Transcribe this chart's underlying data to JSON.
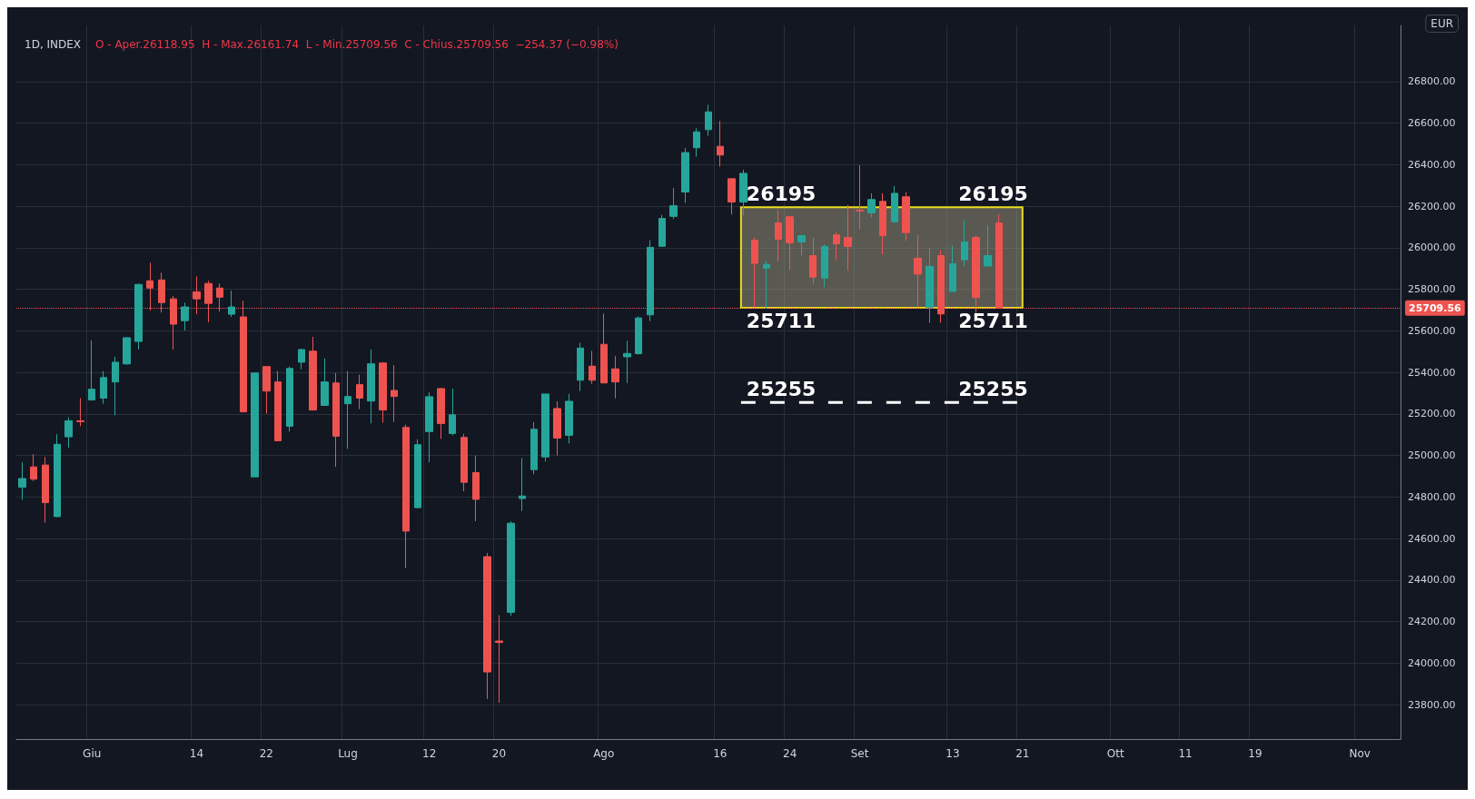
{
  "chart_data": {
    "type": "candlestick",
    "title": "1D, INDEX",
    "subtitle": "O - Aper.26118.95  H - Max.26161.74  L - Min.25709.56  C - Chius.25709.56  −254.37 (−0.98%)",
    "categories": [
      null,
      null,
      null,
      null,
      null,
      null,
      "Giu",
      null,
      null,
      null,
      null,
      null,
      null,
      null,
      null,
      "14",
      null,
      null,
      null,
      null,
      null,
      "22",
      null,
      null,
      null,
      null,
      null,
      null,
      "Lug",
      null,
      null,
      null,
      null,
      null,
      null,
      "12",
      null,
      null,
      null,
      null,
      null,
      "20",
      null,
      null,
      null,
      null,
      null,
      null,
      null,
      null,
      "Ago",
      null,
      null,
      null,
      null,
      null,
      null,
      null,
      null,
      null,
      "16",
      null,
      null,
      null,
      null,
      null,
      "24",
      null,
      null,
      null,
      null,
      null,
      "Set",
      null,
      null,
      null,
      null,
      null,
      null,
      null,
      "13",
      null,
      null,
      null,
      null,
      null,
      "21",
      null,
      null,
      null,
      null,
      null,
      null,
      null,
      "Ott",
      null,
      null,
      null,
      null,
      null,
      "11",
      null,
      null,
      null,
      null,
      null,
      "19",
      null,
      null,
      null,
      null,
      null,
      null,
      null,
      null,
      "Nov",
      null,
      null,
      null
    ],
    "ohlc": [
      [
        24847,
        24967,
        24786,
        24889
      ],
      [
        24945,
        25006,
        24877,
        24886
      ],
      [
        24954,
        24993,
        24677,
        24773
      ],
      [
        24706,
        25102,
        24703,
        25054
      ],
      [
        25090,
        25184,
        25038,
        25167
      ],
      [
        25167,
        25276,
        25141,
        25163
      ],
      [
        25267,
        25554,
        25265,
        25319
      ],
      [
        25276,
        25406,
        25249,
        25375
      ],
      [
        25354,
        25475,
        25194,
        25449
      ],
      [
        25441,
        25567,
        25436,
        25567
      ],
      [
        25549,
        25828,
        25510,
        25823
      ],
      [
        25841,
        25928,
        25697,
        25806
      ],
      [
        25845,
        25880,
        25688,
        25736
      ],
      [
        25754,
        25767,
        25510,
        25632
      ],
      [
        25649,
        25736,
        25602,
        25715
      ],
      [
        25788,
        25862,
        25680,
        25754
      ],
      [
        25828,
        25841,
        25641,
        25732
      ],
      [
        25806,
        25828,
        25693,
        25762
      ],
      [
        25680,
        25793,
        25667,
        25715
      ],
      [
        25667,
        25745,
        25210,
        25210
      ],
      [
        24897,
        25397,
        24897,
        25397
      ],
      [
        25428,
        25428,
        25202,
        25310
      ],
      [
        25354,
        25406,
        25071,
        25071
      ],
      [
        25141,
        25428,
        25115,
        25419
      ],
      [
        25449,
        25514,
        25415,
        25510
      ],
      [
        25502,
        25571,
        25219,
        25219
      ],
      [
        25241,
        25467,
        25241,
        25354
      ],
      [
        25349,
        25397,
        24945,
        25093
      ],
      [
        25249,
        25406,
        25032,
        25284
      ],
      [
        25341,
        25389,
        25223,
        25276
      ],
      [
        25262,
        25510,
        25154,
        25441
      ],
      [
        25445,
        25449,
        25158,
        25219
      ],
      [
        25313,
        25435,
        25162,
        25284
      ],
      [
        25135,
        25148,
        24458,
        24636
      ],
      [
        24749,
        25078,
        24745,
        25052
      ],
      [
        25115,
        25304,
        24967,
        25283
      ],
      [
        25322,
        25326,
        25080,
        25154
      ],
      [
        25106,
        25322,
        25097,
        25196
      ],
      [
        25087,
        25104,
        24828,
        24871
      ],
      [
        24918,
        25000,
        24684,
        24789
      ],
      [
        24513,
        24531,
        23828,
        23958
      ],
      [
        24107,
        24231,
        23810,
        24100
      ],
      [
        24245,
        24683,
        24228,
        24674
      ],
      [
        24793,
        24987,
        24732,
        24805
      ],
      [
        24932,
        25161,
        24910,
        25126
      ],
      [
        24993,
        25296,
        24971,
        25296
      ],
      [
        25226,
        25261,
        25000,
        25084
      ],
      [
        25097,
        25296,
        25058,
        25261
      ],
      [
        25362,
        25543,
        25310,
        25517
      ],
      [
        25430,
        25504,
        25345,
        25362
      ],
      [
        25535,
        25683,
        25349,
        25349
      ],
      [
        25417,
        25478,
        25275,
        25354
      ],
      [
        25475,
        25552,
        25349,
        25491
      ],
      [
        25490,
        25670,
        25486,
        25662
      ],
      [
        25677,
        26036,
        25647,
        26002
      ],
      [
        26007,
        26158,
        26007,
        26141
      ],
      [
        26151,
        26288,
        26138,
        26202
      ],
      [
        26268,
        26480,
        26216,
        26458
      ],
      [
        26481,
        26575,
        26438,
        26558
      ],
      [
        26568,
        26688,
        26538,
        26654
      ],
      [
        26488,
        26610,
        26390,
        26446
      ],
      [
        26332,
        26332,
        26160,
        26220
      ],
      [
        26220,
        26375,
        26155,
        26358
      ],
      [
        26036,
        26049,
        25712,
        25925
      ],
      [
        25902,
        25936,
        25706,
        25919
      ],
      [
        26119,
        26180,
        25934,
        26041
      ],
      [
        26149,
        26149,
        25893,
        26023
      ],
      [
        26028,
        26062,
        25962,
        26058
      ],
      [
        25962,
        26049,
        25828,
        25858
      ],
      [
        25854,
        26015,
        25810,
        26006
      ],
      [
        26062,
        26075,
        25941,
        26019
      ],
      [
        26049,
        26206,
        25889,
        26006
      ],
      [
        26181,
        26397,
        26089,
        26177
      ],
      [
        26168,
        26262,
        26146,
        26232
      ],
      [
        26223,
        26262,
        25968,
        26059
      ],
      [
        26125,
        26297,
        26120,
        26262
      ],
      [
        26245,
        26267,
        26033,
        26073
      ],
      [
        25949,
        26062,
        25712,
        25873
      ],
      [
        25712,
        25999,
        25638,
        25910
      ],
      [
        25962,
        25988,
        25638,
        25681
      ],
      [
        25790,
        26010,
        25790,
        25923
      ],
      [
        25942,
        26132,
        25910,
        26028
      ],
      [
        26049,
        26059,
        25686,
        25760
      ],
      [
        25912,
        26106,
        25912,
        25962
      ],
      [
        26118.95,
        26161.74,
        25709.56,
        25709.56
      ],
      null,
      null,
      null,
      null,
      null,
      null,
      null,
      null,
      null,
      null,
      null,
      null,
      null,
      null,
      null,
      null,
      null,
      null,
      null,
      null,
      null,
      null,
      null,
      null,
      null,
      null,
      null,
      null,
      null,
      null,
      null,
      null,
      null,
      null
    ],
    "colors": [
      "#26a69a",
      "#ef5350",
      "#ef5350",
      "#26a69a",
      "#26a69a",
      "#ef5350",
      "#26a69a",
      "#26a69a",
      "#26a69a",
      "#26a69a",
      "#26a69a",
      "#ef5350",
      "#ef5350",
      "#ef5350",
      "#26a69a",
      "#ef5350",
      "#ef5350",
      "#ef5350",
      "#26a69a",
      "#ef5350",
      "#26a69a",
      "#ef5350",
      "#ef5350",
      "#26a69a",
      "#26a69a",
      "#ef5350",
      "#26a69a",
      "#ef5350",
      "#26a69a",
      "#ef5350",
      "#26a69a",
      "#ef5350",
      "#ef5350",
      "#ef5350",
      "#26a69a",
      "#26a69a",
      "#ef5350",
      "#26a69a",
      "#ef5350",
      "#ef5350",
      "#ef5350",
      "#ef5350",
      "#26a69a",
      "#26a69a",
      "#26a69a",
      "#26a69a",
      "#ef5350",
      "#26a69a",
      "#26a69a",
      "#ef5350",
      "#ef5350",
      "#ef5350",
      "#26a69a",
      "#26a69a",
      "#26a69a",
      "#26a69a",
      "#26a69a",
      "#26a69a",
      "#26a69a",
      "#26a69a",
      "#ef5350",
      "#ef5350",
      "#26a69a",
      "#ef5350",
      "#26a69a",
      "#ef5350",
      "#ef5350",
      "#26a69a",
      "#ef5350",
      "#26a69a",
      "#ef5350",
      "#ef5350",
      "#ef5350",
      "#26a69a",
      "#ef5350",
      "#26a69a",
      "#ef5350",
      "#ef5350",
      "#26a69a",
      "#ef5350",
      "#26a69a",
      "#26a69a",
      "#ef5350",
      "#26a69a",
      "#ef5350",
      null,
      null,
      null,
      null,
      null,
      null,
      null,
      null,
      null,
      null,
      null,
      null,
      null,
      null,
      null,
      null,
      null,
      null,
      null,
      null,
      null,
      null,
      null,
      null,
      null,
      null,
      null,
      null,
      null,
      null,
      null,
      null,
      null,
      null
    ],
    "ylim": [
      23635,
      27070
    ],
    "yticks": [
      {
        "value": 23800,
        "label": "23800.00"
      },
      {
        "value": 24000,
        "label": "24000.00"
      },
      {
        "value": 24200,
        "label": "24200.00"
      },
      {
        "value": 24400,
        "label": "24400.00"
      },
      {
        "value": 24600,
        "label": "24600.00"
      },
      {
        "value": 24800,
        "label": "24800.00"
      },
      {
        "value": 25000,
        "label": "25000.00"
      },
      {
        "value": 25200,
        "label": "25200.00"
      },
      {
        "value": 25400,
        "label": "25400.00"
      },
      {
        "value": 25600,
        "label": "25600.00"
      },
      {
        "value": 25800,
        "label": "25800.00"
      },
      {
        "value": 26000,
        "label": "26000.00"
      },
      {
        "value": 26200,
        "label": "26200.00"
      },
      {
        "value": 26400,
        "label": "26400.00"
      },
      {
        "value": 26600,
        "label": "26600.00"
      },
      {
        "value": 26800,
        "label": "26800.00"
      }
    ],
    "grid": true,
    "bands": [
      {
        "axis": "y",
        "from": 25711,
        "to": 26195,
        "color": "#e8dc1c"
      }
    ],
    "ref_lines": [
      {
        "axis": "y",
        "value": 25709.56,
        "label": "25709.56",
        "color": "#ef5350",
        "line_style": "dotted"
      },
      {
        "axis": "y",
        "value": 25255,
        "color": "#ffffff",
        "line_style": "dashed"
      }
    ],
    "annotations": [
      {
        "text": "26195",
        "y": 26195
      },
      {
        "text": "26195",
        "y": 26195
      },
      {
        "text": "25711",
        "y": 25711
      },
      {
        "text": "25711",
        "y": 25711
      },
      {
        "text": "25255",
        "y": 25255
      },
      {
        "text": "25255",
        "y": 25255
      },
      "EUR"
    ]
  }
}
